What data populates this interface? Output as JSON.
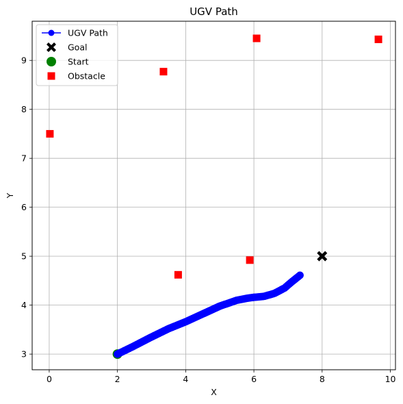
{
  "chart_data": {
    "type": "scatter",
    "title": "UGV Path",
    "xlabel": "X",
    "ylabel": "Y",
    "xlim": [
      -0.5,
      10.15
    ],
    "ylim": [
      2.68,
      9.8
    ],
    "xticks": [
      0,
      2,
      4,
      6,
      8,
      10
    ],
    "yticks": [
      3,
      4,
      5,
      6,
      7,
      8,
      9
    ],
    "grid": true,
    "legend_position": "top-left",
    "legend": [
      {
        "label": "UGV Path",
        "marker": "line-circle",
        "color": "#0000ff"
      },
      {
        "label": "Goal",
        "marker": "X",
        "color": "#000000"
      },
      {
        "label": "Start",
        "marker": "circle",
        "color": "#008000"
      },
      {
        "label": "Obstacle",
        "marker": "square",
        "color": "#ff0000"
      }
    ],
    "start": {
      "x": 2.0,
      "y": 3.0
    },
    "goal": {
      "x": 8.0,
      "y": 5.0
    },
    "obstacles": [
      {
        "x": 0.02,
        "y": 7.5
      },
      {
        "x": 3.35,
        "y": 8.77
      },
      {
        "x": 6.08,
        "y": 9.45
      },
      {
        "x": 9.65,
        "y": 9.43
      },
      {
        "x": 3.78,
        "y": 4.62
      },
      {
        "x": 5.88,
        "y": 4.92
      }
    ],
    "path_control_points": [
      {
        "x": 2.0,
        "y": 3.0
      },
      {
        "x": 2.5,
        "y": 3.17
      },
      {
        "x": 3.0,
        "y": 3.35
      },
      {
        "x": 3.5,
        "y": 3.52
      },
      {
        "x": 4.0,
        "y": 3.66
      },
      {
        "x": 4.5,
        "y": 3.82
      },
      {
        "x": 5.0,
        "y": 3.98
      },
      {
        "x": 5.5,
        "y": 4.1
      },
      {
        "x": 5.8,
        "y": 4.14
      },
      {
        "x": 6.0,
        "y": 4.16
      },
      {
        "x": 6.3,
        "y": 4.18
      },
      {
        "x": 6.6,
        "y": 4.24
      },
      {
        "x": 6.9,
        "y": 4.35
      },
      {
        "x": 7.1,
        "y": 4.47
      },
      {
        "x": 7.35,
        "y": 4.61
      }
    ],
    "path_point_count": 110,
    "series": [
      {
        "name": "UGV Path",
        "color": "#0000ff"
      },
      {
        "name": "Goal",
        "color": "#000000"
      },
      {
        "name": "Start",
        "color": "#008000"
      },
      {
        "name": "Obstacle",
        "color": "#ff0000"
      }
    ]
  }
}
